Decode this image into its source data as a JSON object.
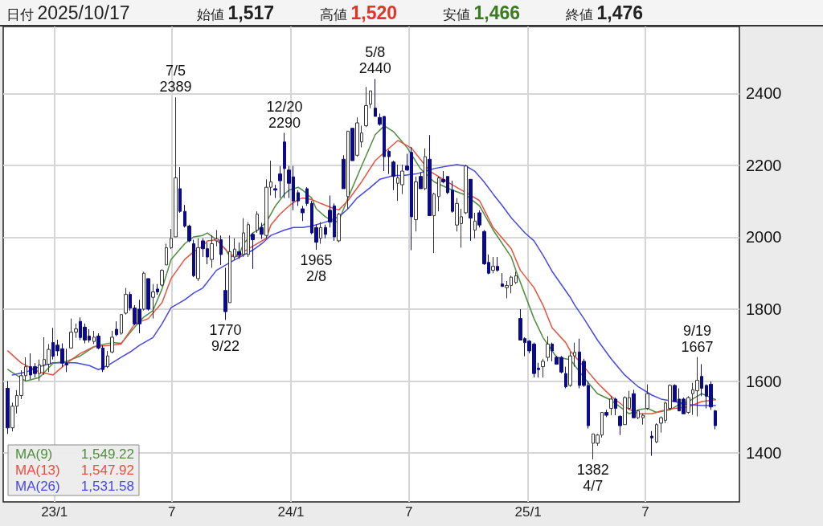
{
  "chart_data": {
    "type": "candlestick",
    "annotations": [
      "日付 2025/10/17",
      "始値 1,517",
      "高値 1,520",
      "安値 1,466",
      "終値 1,476",
      "1,549.22",
      "1,547.92",
      "1,531.58",
      {
        "text": "7/5\n2389",
        "x": "2023-07-07",
        "y": 2389
      },
      {
        "text": "1770\n9/22",
        "x": "2023-09-22",
        "y": 1770
      },
      {
        "text": "12/20\n2290",
        "x": "2023-12-22",
        "y": 2290
      },
      {
        "text": "1965\n2/8",
        "x": "2024-02-09",
        "y": 1965
      },
      {
        "text": "5/8\n2440",
        "x": "2024-05-10",
        "y": 2440
      },
      {
        "text": "1382\n4/7",
        "x": "2025-04-11",
        "y": 1382
      },
      {
        "text": "9/19\n1667",
        "x": "2025-09-19",
        "y": 1667
      }
    ],
    "x": [
      "2022-10-21",
      "2022-10-28",
      "2022-11-04",
      "2022-11-11",
      "2022-11-18",
      "2022-11-25",
      "2022-12-02",
      "2022-12-09",
      "2022-12-16",
      "2022-12-23",
      "2022-12-30",
      "2023-01-06",
      "2023-01-13",
      "2023-01-20",
      "2023-01-27",
      "2023-02-03",
      "2023-02-10",
      "2023-02-17",
      "2023-02-24",
      "2023-03-03",
      "2023-03-10",
      "2023-03-17",
      "2023-03-24",
      "2023-03-31",
      "2023-04-07",
      "2023-04-14",
      "2023-04-21",
      "2023-04-28",
      "2023-05-05",
      "2023-05-12",
      "2023-05-19",
      "2023-05-26",
      "2023-06-02",
      "2023-06-09",
      "2023-06-16",
      "2023-06-23",
      "2023-06-30",
      "2023-07-07",
      "2023-07-14",
      "2023-07-21",
      "2023-07-28",
      "2023-08-04",
      "2023-08-11",
      "2023-08-18",
      "2023-08-25",
      "2023-09-01",
      "2023-09-08",
      "2023-09-15",
      "2023-09-22",
      "2023-09-29",
      "2023-10-06",
      "2023-10-13",
      "2023-10-20",
      "2023-10-27",
      "2023-11-03",
      "2023-11-10",
      "2023-11-17",
      "2023-11-24",
      "2023-12-01",
      "2023-12-08",
      "2023-12-15",
      "2023-12-22",
      "2023-12-29",
      "2024-01-05",
      "2024-01-12",
      "2024-01-19",
      "2024-01-26",
      "2024-02-02",
      "2024-02-09",
      "2024-02-16",
      "2024-02-23",
      "2024-03-01",
      "2024-03-08",
      "2024-03-15",
      "2024-03-22",
      "2024-03-29",
      "2024-04-05",
      "2024-04-12",
      "2024-04-19",
      "2024-04-26",
      "2024-05-03",
      "2024-05-10",
      "2024-05-17",
      "2024-05-24",
      "2024-05-31",
      "2024-06-07",
      "2024-06-14",
      "2024-06-21",
      "2024-06-28",
      "2024-07-05",
      "2024-07-12",
      "2024-07-19",
      "2024-07-26",
      "2024-08-02",
      "2024-08-09",
      "2024-08-16",
      "2024-08-23",
      "2024-08-30",
      "2024-09-06",
      "2024-09-13",
      "2024-09-20",
      "2024-09-27",
      "2024-10-04",
      "2024-10-11",
      "2024-10-18",
      "2024-10-25",
      "2024-11-01",
      "2024-11-08",
      "2024-11-15",
      "2024-11-22",
      "2024-11-29",
      "2024-12-06",
      "2024-12-13",
      "2024-12-20",
      "2024-12-27",
      "2025-01-03",
      "2025-01-10",
      "2025-01-17",
      "2025-01-24",
      "2025-01-31",
      "2025-02-07",
      "2025-02-14",
      "2025-02-21",
      "2025-02-28",
      "2025-03-07",
      "2025-03-14",
      "2025-03-21",
      "2025-03-28",
      "2025-04-04",
      "2025-04-11",
      "2025-04-18",
      "2025-04-25",
      "2025-05-02",
      "2025-05-09",
      "2025-05-16",
      "2025-05-23",
      "2025-05-30",
      "2025-06-06",
      "2025-06-13",
      "2025-06-20",
      "2025-06-27",
      "2025-07-04",
      "2025-07-11",
      "2025-07-18",
      "2025-07-25",
      "2025-08-01",
      "2025-08-08",
      "2025-08-15",
      "2025-08-22",
      "2025-08-29",
      "2025-09-05",
      "2025-09-12",
      "2025-09-19",
      "2025-09-26",
      "2025-10-03",
      "2025-10-10",
      "2025-10-17"
    ],
    "ohlc": [
      [
        1580,
        1600,
        1453,
        1470
      ],
      [
        1470,
        1540,
        1460,
        1530
      ],
      [
        1530,
        1575,
        1510,
        1560
      ],
      [
        1560,
        1630,
        1550,
        1615
      ],
      [
        1615,
        1666,
        1600,
        1640
      ],
      [
        1640,
        1677,
        1605,
        1617
      ],
      [
        1640,
        1650,
        1610,
        1621
      ],
      [
        1621,
        1660,
        1600,
        1645
      ],
      [
        1645,
        1722,
        1617,
        1660
      ],
      [
        1647,
        1703,
        1625,
        1688
      ],
      [
        1707,
        1748,
        1660,
        1669
      ],
      [
        1700,
        1715,
        1670,
        1684
      ],
      [
        1690,
        1705,
        1640,
        1650
      ],
      [
        1650,
        1690,
        1625,
        1645
      ],
      [
        1692,
        1774,
        1690,
        1736
      ],
      [
        1736,
        1760,
        1720,
        1745
      ],
      [
        1766,
        1777,
        1714,
        1721
      ],
      [
        1750,
        1760,
        1705,
        1714
      ],
      [
        1725,
        1744,
        1707,
        1714
      ],
      [
        1710,
        1740,
        1703,
        1722
      ],
      [
        1725,
        1733,
        1688,
        1692
      ],
      [
        1692,
        1699,
        1625,
        1632
      ],
      [
        1640,
        1684,
        1636,
        1670
      ],
      [
        1681,
        1740,
        1677,
        1722
      ],
      [
        1744,
        1766,
        1725,
        1729
      ],
      [
        1733,
        1785,
        1729,
        1785
      ],
      [
        1789,
        1859,
        1785,
        1841
      ],
      [
        1841,
        1848,
        1796,
        1803
      ],
      [
        1803,
        1811,
        1755,
        1759
      ],
      [
        1800,
        1826,
        1733,
        1759
      ],
      [
        1800,
        1904,
        1796,
        1900
      ],
      [
        1885,
        1885,
        1796,
        1800
      ],
      [
        1833,
        1870,
        1774,
        1848
      ],
      [
        1856,
        1870,
        1840,
        1848
      ],
      [
        1867,
        1911,
        1863,
        1908
      ],
      [
        1923,
        1982,
        1923,
        1971
      ],
      [
        1971,
        2023,
        1967,
        1997
      ],
      [
        2001,
        2389,
        2001,
        2165
      ],
      [
        2135,
        2195,
        2068,
        2072
      ],
      [
        2072,
        2090,
        2027,
        2031
      ],
      [
        2031,
        2035,
        1986,
        1990
      ],
      [
        1982,
        1993,
        1889,
        1893
      ],
      [
        1885,
        1997,
        1878,
        1971
      ],
      [
        1990,
        1997,
        1945,
        1968
      ],
      [
        1968,
        1985,
        1925,
        1945
      ],
      [
        1938,
        2005,
        1915,
        1982
      ],
      [
        1990,
        2020,
        1975,
        1995
      ],
      [
        1993,
        2005,
        1923,
        1952
      ],
      [
        1852,
        1915,
        1770,
        1793
      ],
      [
        1818,
        2005,
        1818,
        1960
      ],
      [
        1945,
        1997,
        1937,
        1967
      ],
      [
        1960,
        1985,
        1940,
        1950
      ],
      [
        1952,
        2053,
        1945,
        2012
      ],
      [
        1952,
        2042,
        1945,
        2035
      ],
      [
        2008,
        2012,
        1912,
        1993
      ],
      [
        2020,
        2072,
        2012,
        2064
      ],
      [
        2027,
        2040,
        1995,
        2008
      ],
      [
        2005,
        2161,
        1997,
        2139
      ],
      [
        2139,
        2213,
        2116,
        2154
      ],
      [
        2135,
        2146,
        2109,
        2131
      ],
      [
        2176,
        2198,
        2109,
        2157
      ],
      [
        2265,
        2290,
        2109,
        2191
      ],
      [
        2187,
        2198,
        2109,
        2150
      ],
      [
        2168,
        2198,
        2075,
        2101
      ],
      [
        2124,
        2131,
        2087,
        2101
      ],
      [
        2079,
        2087,
        2045,
        2068
      ],
      [
        2135,
        2139,
        2087,
        2094
      ],
      [
        2094,
        2101,
        2008,
        2012
      ],
      [
        2027,
        2035,
        1965,
        1986
      ],
      [
        1997,
        2042,
        1982,
        2027
      ],
      [
        2027,
        2035,
        1997,
        2008
      ],
      [
        2075,
        2116,
        2027,
        2042
      ],
      [
        2087,
        2094,
        1990,
        2001
      ],
      [
        1990,
        2068,
        1986,
        2064
      ],
      [
        2217,
        2228,
        2135,
        2135
      ],
      [
        2113,
        2295,
        2079,
        2295
      ],
      [
        2303,
        2303,
        2213,
        2213
      ],
      [
        2228,
        2333,
        2224,
        2318
      ],
      [
        2265,
        2310,
        2250,
        2290
      ],
      [
        2310,
        2418,
        2306,
        2366
      ],
      [
        2370,
        2407,
        2359,
        2407
      ],
      [
        2359,
        2440,
        2336,
        2336
      ],
      [
        2333,
        2344,
        2310,
        2314
      ],
      [
        2336,
        2336,
        2184,
        2224
      ],
      [
        2239,
        2243,
        2176,
        2224
      ],
      [
        2209,
        2213,
        2131,
        2169
      ],
      [
        2150,
        2202,
        2101,
        2165
      ],
      [
        2146,
        2202,
        2120,
        2184
      ],
      [
        2198,
        2232,
        2184,
        2187
      ],
      [
        2236,
        2251,
        1964,
        2057
      ],
      [
        2049,
        2169,
        2016,
        2154
      ],
      [
        2169,
        2180,
        2135,
        2135
      ],
      [
        2135,
        2247,
        2131,
        2224
      ],
      [
        2217,
        2284,
        2060,
        2060
      ],
      [
        2060,
        2124,
        1956,
        2120
      ],
      [
        2113,
        2169,
        2072,
        2165
      ],
      [
        2161,
        2184,
        2150,
        2154
      ],
      [
        2169,
        2169,
        2120,
        2124
      ],
      [
        2131,
        2157,
        2068,
        2072
      ],
      [
        2034,
        2109,
        2016,
        2094
      ],
      [
        2038,
        2079,
        1971,
        2057
      ],
      [
        2068,
        2202,
        2064,
        2198
      ],
      [
        2161,
        2161,
        1990,
        2053
      ],
      [
        2020,
        2068,
        1997,
        2045
      ],
      [
        2068,
        2075,
        2027,
        2034
      ],
      [
        2016,
        2020,
        1923,
        1926
      ],
      [
        1930,
        1952,
        1897,
        1900
      ],
      [
        1908,
        1945,
        1900,
        1919
      ],
      [
        1919,
        1945,
        1904,
        1908
      ],
      [
        1870,
        1900,
        1863,
        1863
      ],
      [
        1860,
        1878,
        1830,
        1866
      ],
      [
        1866,
        1893,
        1844,
        1889
      ],
      [
        1874,
        1904,
        1870,
        1893
      ],
      [
        1774,
        1800,
        1714,
        1714
      ],
      [
        1718,
        1722,
        1669,
        1707
      ],
      [
        1711,
        1714,
        1677,
        1684
      ],
      [
        1703,
        1707,
        1610,
        1621
      ],
      [
        1636,
        1651,
        1610,
        1632
      ],
      [
        1640,
        1662,
        1610,
        1655
      ],
      [
        1666,
        1725,
        1655,
        1703
      ],
      [
        1703,
        1707,
        1655,
        1684
      ],
      [
        1666,
        1670,
        1647,
        1647
      ],
      [
        1666,
        1670,
        1621,
        1625
      ],
      [
        1621,
        1640,
        1580,
        1584
      ],
      [
        1588,
        1681,
        1584,
        1670
      ],
      [
        1670,
        1707,
        1640,
        1680
      ],
      [
        1681,
        1718,
        1580,
        1588
      ],
      [
        1655,
        1662,
        1584,
        1588
      ],
      [
        1588,
        1600,
        1468,
        1476
      ],
      [
        1427,
        1453,
        1382,
        1453
      ],
      [
        1427,
        1453,
        1420,
        1450
      ],
      [
        1450,
        1513,
        1443,
        1513
      ],
      [
        1513,
        1520,
        1500,
        1505
      ],
      [
        1524,
        1558,
        1505,
        1550
      ],
      [
        1550,
        1554,
        1505,
        1524
      ],
      [
        1502,
        1505,
        1450,
        1476
      ],
      [
        1479,
        1558,
        1479,
        1554
      ],
      [
        1524,
        1573,
        1520,
        1554
      ],
      [
        1565,
        1576,
        1498,
        1498
      ],
      [
        1498,
        1520,
        1494,
        1517
      ],
      [
        1498,
        1509,
        1479,
        1505
      ],
      [
        1524,
        1591,
        1520,
        1565
      ],
      [
        1447,
        1461,
        1392,
        1442
      ],
      [
        1431,
        1483,
        1427,
        1479
      ],
      [
        1483,
        1502,
        1457,
        1498
      ],
      [
        1491,
        1543,
        1483,
        1539
      ],
      [
        1524,
        1591,
        1520,
        1588
      ],
      [
        1588,
        1591,
        1543,
        1543
      ],
      [
        1550,
        1580,
        1517,
        1517
      ],
      [
        1550,
        1554,
        1509,
        1509
      ],
      [
        1513,
        1558,
        1509,
        1554
      ],
      [
        1565,
        1595,
        1506,
        1576
      ],
      [
        1573,
        1667,
        1502,
        1602
      ],
      [
        1613,
        1647,
        1558,
        1580
      ],
      [
        1588,
        1591,
        1524,
        1558
      ],
      [
        1591,
        1599,
        1520,
        1528
      ],
      [
        1517,
        1520,
        1466,
        1476
      ]
    ],
    "series": [
      {
        "type": "line",
        "name": "MA(9)",
        "color": "#4e8f3e",
        "x": [
          "2022-10-21",
          "2022-11-18",
          "2022-12-09",
          "2022-12-30",
          "2023-01-20",
          "2023-02-10",
          "2023-03-03",
          "2023-03-17",
          "2023-03-31",
          "2023-04-14",
          "2023-04-28",
          "2023-05-05",
          "2023-05-19",
          "2023-06-02",
          "2023-06-16",
          "2023-06-30",
          "2023-07-21",
          "2023-08-04",
          "2023-08-18",
          "2023-08-25",
          "2023-09-08",
          "2023-09-22",
          "2023-09-29",
          "2023-10-13",
          "2023-10-20",
          "2023-11-03",
          "2023-11-10",
          "2023-11-24",
          "2023-12-08",
          "2023-12-22",
          "2023-12-29",
          "2024-01-12",
          "2024-01-19",
          "2024-02-02",
          "2024-02-09",
          "2024-02-23",
          "2024-03-08",
          "2024-03-15",
          "2024-03-29",
          "2024-04-19",
          "2024-05-10",
          "2024-05-24",
          "2024-06-07",
          "2024-06-28",
          "2024-07-19",
          "2024-08-09",
          "2024-09-06",
          "2024-09-27",
          "2024-10-18",
          "2024-11-08",
          "2024-12-06",
          "2024-12-13",
          "2024-12-27",
          "2025-01-10",
          "2025-01-24",
          "2025-02-07",
          "2025-02-14",
          "2025-03-07",
          "2025-03-28",
          "2025-04-18",
          "2025-05-09",
          "2025-05-23",
          "2025-06-06",
          "2025-06-20",
          "2025-07-04",
          "2025-07-18",
          "2025-08-08",
          "2025-08-22",
          "2025-09-05",
          "2025-09-26",
          "2025-10-10",
          "2025-10-17"
        ],
        "values": [
          1632,
          1600,
          1610,
          1650,
          1655,
          1670,
          1695,
          1702,
          1707,
          1705,
          1735,
          1750,
          1778,
          1796,
          1856,
          1938,
          1982,
          2001,
          2005,
          2012,
          1993,
          1967,
          1945,
          1952,
          1982,
          2012,
          2019,
          2042,
          2087,
          2120,
          2131,
          2139,
          2131,
          2109,
          2079,
          2057,
          2042,
          2046,
          2109,
          2198,
          2285,
          2310,
          2294,
          2250,
          2190,
          2154,
          2131,
          2117,
          2087,
          2020,
          1945,
          1908,
          1841,
          1774,
          1721,
          1684,
          1666,
          1660,
          1610,
          1565,
          1547,
          1528,
          1509,
          1520,
          1524,
          1513,
          1520,
          1535,
          1543,
          1565,
          1554,
          1549
        ]
      },
      {
        "type": "line",
        "name": "MA(13)",
        "color": "#e8503f",
        "x": [
          "2022-10-21",
          "2022-11-11",
          "2022-12-09",
          "2022-12-30",
          "2023-01-20",
          "2023-02-10",
          "2023-03-03",
          "2023-03-24",
          "2023-04-14",
          "2023-05-05",
          "2023-05-26",
          "2023-06-16",
          "2023-06-30",
          "2023-07-21",
          "2023-08-04",
          "2023-08-18",
          "2023-08-25",
          "2023-09-08",
          "2023-09-15",
          "2023-09-29",
          "2023-10-13",
          "2023-10-20",
          "2023-11-10",
          "2023-11-24",
          "2023-12-01",
          "2023-12-15",
          "2023-12-29",
          "2024-01-12",
          "2024-01-19",
          "2024-02-02",
          "2024-02-16",
          "2024-03-08",
          "2024-03-15",
          "2024-03-29",
          "2024-04-19",
          "2024-05-10",
          "2024-05-24",
          "2024-06-14",
          "2024-07-05",
          "2024-08-02",
          "2024-09-06",
          "2024-09-27",
          "2024-10-18",
          "2024-11-08",
          "2024-12-06",
          "2024-12-20",
          "2025-01-10",
          "2025-01-24",
          "2025-02-07",
          "2025-02-28",
          "2025-03-07",
          "2025-03-28",
          "2025-04-18",
          "2025-05-09",
          "2025-05-30",
          "2025-06-20",
          "2025-07-11",
          "2025-07-25",
          "2025-08-15",
          "2025-09-05",
          "2025-09-26",
          "2025-10-17"
        ],
        "values": [
          1684,
          1650,
          1625,
          1617,
          1650,
          1677,
          1696,
          1699,
          1703,
          1759,
          1774,
          1818,
          1885,
          1938,
          1960,
          1975,
          1990,
          1993,
          1980,
          1952,
          1945,
          1960,
          1982,
          1997,
          2034,
          2064,
          2087,
          2105,
          2109,
          2105,
          2094,
          2079,
          2076,
          2102,
          2154,
          2213,
          2236,
          2269,
          2248,
          2184,
          2146,
          2124,
          2102,
          2027,
          1968,
          1908,
          1860,
          1811,
          1748,
          1707,
          1684,
          1640,
          1595,
          1558,
          1528,
          1509,
          1509,
          1517,
          1524,
          1528,
          1543,
          1548
        ]
      },
      {
        "type": "line",
        "name": "MA(26)",
        "color": "#4848e8",
        "x": [
          "2022-10-28",
          "2022-11-18",
          "2022-12-09",
          "2022-12-30",
          "2023-02-03",
          "2023-02-24",
          "2023-03-10",
          "2023-03-24",
          "2023-04-14",
          "2023-04-28",
          "2023-05-12",
          "2023-06-02",
          "2023-06-16",
          "2023-06-30",
          "2023-07-21",
          "2023-08-04",
          "2023-08-18",
          "2023-09-08",
          "2023-10-06",
          "2023-11-03",
          "2023-11-17",
          "2023-12-01",
          "2023-12-22",
          "2024-01-05",
          "2024-01-19",
          "2024-02-02",
          "2024-02-23",
          "2024-03-15",
          "2024-03-29",
          "2024-04-12",
          "2024-05-03",
          "2024-05-17",
          "2024-05-31",
          "2024-06-07",
          "2024-06-21",
          "2024-07-12",
          "2024-07-26",
          "2024-08-09",
          "2024-08-30",
          "2024-09-13",
          "2024-09-27",
          "2024-10-11",
          "2024-10-25",
          "2024-11-08",
          "2024-11-22",
          "2024-12-06",
          "2024-12-27",
          "2025-01-10",
          "2025-01-24",
          "2025-02-07",
          "2025-03-07",
          "2025-03-14",
          "2025-03-28",
          "2025-04-18",
          "2025-05-09",
          "2025-05-30",
          "2025-06-20",
          "2025-07-11",
          "2025-07-25",
          "2025-08-15",
          "2025-09-05",
          "2025-09-26",
          "2025-10-17"
        ],
        "values": [
          1617,
          1625,
          1640,
          1651,
          1651,
          1643,
          1632,
          1643,
          1666,
          1681,
          1699,
          1721,
          1759,
          1804,
          1826,
          1845,
          1859,
          1908,
          1937,
          1964,
          1982,
          2005,
          2020,
          2027,
          2027,
          2031,
          2042,
          2057,
          2079,
          2109,
          2139,
          2161,
          2168,
          2172,
          2172,
          2176,
          2183,
          2191,
          2198,
          2202,
          2198,
          2183,
          2154,
          2120,
          2088,
          2054,
          2012,
          1990,
          1950,
          1905,
          1833,
          1811,
          1774,
          1714,
          1662,
          1617,
          1584,
          1561,
          1550,
          1543,
          1535,
          1532,
          1532
        ]
      }
    ],
    "xlim": [
      "2022-10-14",
      "2025-11-23"
    ],
    "xticks": [
      {
        "value": "2023-01-01",
        "label": "23/1"
      },
      {
        "value": "2023-07-01",
        "label": "7"
      },
      {
        "value": "2024-01-01",
        "label": "24/1"
      },
      {
        "value": "2024-07-01",
        "label": "7"
      },
      {
        "value": "2025-01-01",
        "label": "25/1"
      },
      {
        "value": "2025-07-01",
        "label": "7"
      }
    ],
    "ylim": [
      1264,
      2586
    ],
    "yticks": [
      1400,
      1600,
      1800,
      2000,
      2200,
      2400
    ],
    "grid": true,
    "legend": "bottom left",
    "marker": "none",
    "line_style": "solid"
  }
}
